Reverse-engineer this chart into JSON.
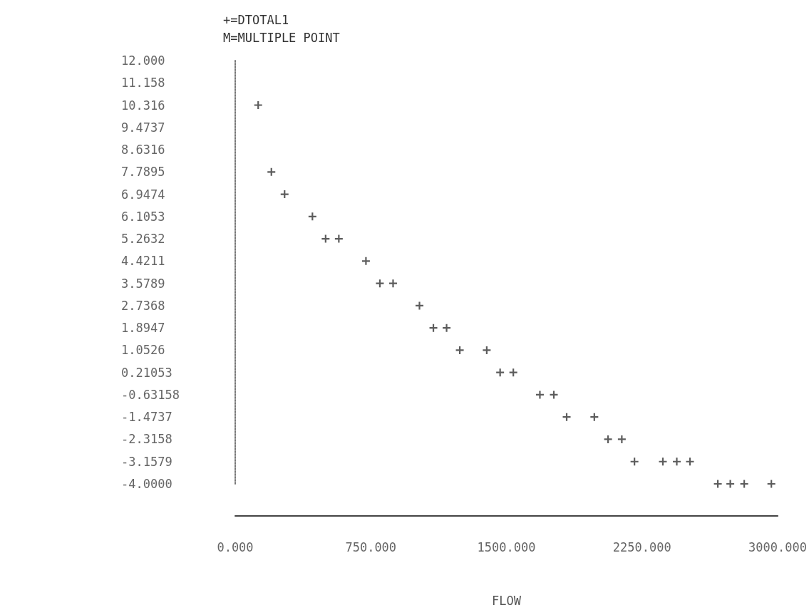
{
  "chart_data": {
    "type": "scatter",
    "title": "+=DTOTAL1",
    "subtitle": "M=MULTIPLE POINT",
    "xlabel": "FLOW",
    "x": [
      127,
      200,
      273,
      427,
      500,
      573,
      723,
      800,
      873,
      1019,
      1096,
      1169,
      1242,
      1391,
      1465,
      1538,
      1685,
      1762,
      1833,
      1986,
      2062,
      2138,
      2208,
      2365,
      2442,
      2515,
      2669,
      2738,
      2815,
      2965
    ],
    "values": [
      10.316,
      7.7895,
      6.9474,
      6.1053,
      5.2632,
      5.2632,
      4.4211,
      3.5789,
      3.5789,
      2.7368,
      1.8947,
      1.8947,
      1.0526,
      1.0526,
      0.21053,
      0.21053,
      -0.63158,
      -0.63158,
      -1.4737,
      -1.4737,
      -2.3158,
      -2.3158,
      -3.1579,
      -3.1579,
      -3.1579,
      -3.1579,
      -4,
      -4,
      -4,
      -4
    ],
    "color": "#333333",
    "marker": "cross",
    "grid": false,
    "legend": false,
    "xlim": [
      0,
      3000
    ],
    "xticks": [
      {
        "value": 0,
        "label": "0.000"
      },
      {
        "value": 750,
        "label": "750.000"
      },
      {
        "value": 1500,
        "label": "1500.000"
      },
      {
        "value": 2250,
        "label": "2250.000"
      },
      {
        "value": 3000,
        "label": "3000.000"
      }
    ],
    "ylim": [
      -4,
      12
    ],
    "yticks": [
      {
        "value": 12,
        "label": "12.000"
      },
      11.158,
      10.316,
      9.4737,
      8.6316,
      7.7895,
      6.9474,
      6.1053,
      5.2632,
      4.4211,
      3.5789,
      2.7368,
      1.8947,
      1.0526,
      0.21053,
      -0.63158,
      -1.4737,
      -2.3158,
      -3.1579,
      {
        "value": -4,
        "label": "-4.0000"
      }
    ]
  }
}
